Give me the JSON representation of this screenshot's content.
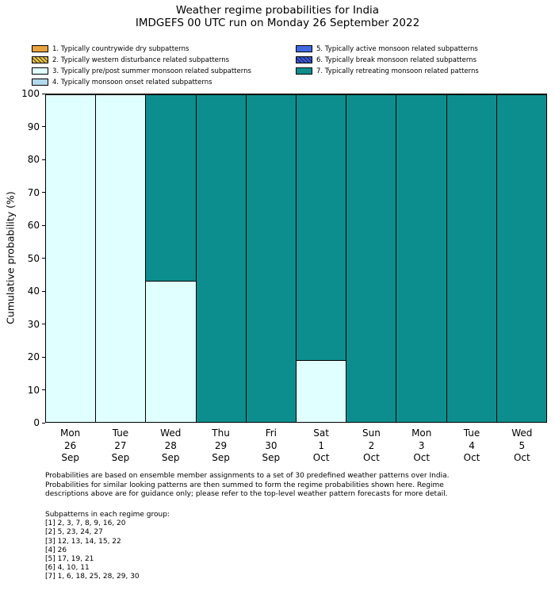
{
  "title": "Weather regime probabilities for India",
  "subtitle": "IMDGEFS 00 UTC run on Monday 26 September 2022",
  "legend": {
    "left": [
      {
        "label": "1. Typically countrywide dry subpatterns",
        "color": "#e8a33d",
        "hatch": false
      },
      {
        "label": "2. Typically western disturbance related subpatterns",
        "color": "#edc53f",
        "hatch": true
      },
      {
        "label": "3. Typically pre/post summer monsoon related subpatterns",
        "color": "#e0ffff",
        "hatch": false
      },
      {
        "label": "4. Typically monsoon onset related subpatterns",
        "color": "#b3d9ec",
        "hatch": false
      }
    ],
    "right": [
      {
        "label": "5. Typically active monsoon related subpatterns",
        "color": "#4169e1",
        "hatch": false
      },
      {
        "label": "6. Typically break monsoon related subpatterns",
        "color": "#3b5bd6",
        "hatch": true
      },
      {
        "label": "7. Typically retreating monsoon related patterns",
        "color": "#0d8e8e",
        "hatch": false
      }
    ]
  },
  "chart_data": {
    "type": "bar",
    "stacked": true,
    "title": "Weather regime probabilities for India",
    "subtitle": "IMDGEFS 00 UTC run on Monday 26 September 2022",
    "ylabel": "Cumulative probability (%)",
    "ylim": [
      0,
      100
    ],
    "yticks": [
      0,
      10,
      20,
      30,
      40,
      50,
      60,
      70,
      80,
      90,
      100
    ],
    "bar_edge_color": "#000000",
    "categories": [
      {
        "day": "Mon",
        "date": "26",
        "month": "Sep"
      },
      {
        "day": "Tue",
        "date": "27",
        "month": "Sep"
      },
      {
        "day": "Wed",
        "date": "28",
        "month": "Sep"
      },
      {
        "day": "Thu",
        "date": "29",
        "month": "Sep"
      },
      {
        "day": "Fri",
        "date": "30",
        "month": "Sep"
      },
      {
        "day": "Sat",
        "date": "1",
        "month": "Oct"
      },
      {
        "day": "Sun",
        "date": "2",
        "month": "Oct"
      },
      {
        "day": "Mon",
        "date": "3",
        "month": "Oct"
      },
      {
        "day": "Tue",
        "date": "4",
        "month": "Oct"
      },
      {
        "day": "Wed",
        "date": "5",
        "month": "Oct"
      }
    ],
    "series": [
      {
        "name": "3. Typically pre/post summer monsoon related subpatterns",
        "color": "#e0ffff",
        "values": [
          100,
          100,
          43,
          0,
          0,
          19,
          0,
          0,
          0,
          0
        ]
      },
      {
        "name": "7. Typically retreating monsoon related patterns",
        "color": "#0d8e8e",
        "values": [
          0,
          0,
          57,
          100,
          100,
          81,
          100,
          100,
          100,
          100
        ]
      }
    ]
  },
  "footnote": {
    "lines": [
      "Probabilities are based on ensemble member assignments to a set of 30 predefined weather patterns over India.",
      "Probabilities for similar looking patterns are then summed to form the regime probabilities shown here. Regime",
      "descriptions above are for guidance only; please refer to the top-level weather pattern forecasts for more detail."
    ]
  },
  "subpatterns": {
    "heading": "Subpatterns in each regime group:",
    "groups": [
      "[1] 2, 3, 7, 8, 9, 16, 20",
      "[2] 5, 23, 24, 27",
      "[3] 12, 13, 14, 15, 22",
      "[4] 26",
      "[5] 17, 19, 21",
      "[6] 4, 10, 11",
      "[7] 1, 6, 18, 25, 28, 29, 30"
    ]
  }
}
